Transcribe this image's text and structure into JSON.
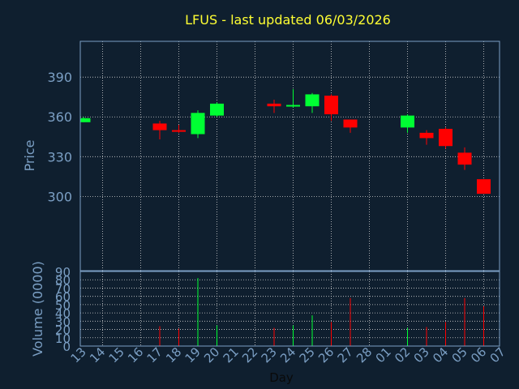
{
  "chart_data": {
    "type": "candlestick",
    "title": "LFUS - last updated 06/03/2026",
    "xlabel": "Day",
    "price_panel": {
      "ylabel": "Price",
      "ylim": [
        244,
        417
      ],
      "yticks": [
        300,
        330,
        360,
        390
      ]
    },
    "volume_panel": {
      "ylabel": "Volume (0000)",
      "ylim": [
        0,
        90
      ],
      "yticks": [
        0,
        10,
        20,
        30,
        40,
        50,
        60,
        70,
        80,
        90
      ]
    },
    "x_tick_labels": [
      "13",
      "14",
      "15",
      "16",
      "17",
      "18",
      "19",
      "20",
      "21",
      "22",
      "23",
      "24",
      "25",
      "26",
      "27",
      "28",
      "01",
      "02",
      "03",
      "04",
      "05",
      "06",
      "07"
    ],
    "candles": [
      {
        "i": 0,
        "open": 356,
        "high": 360,
        "low": 356,
        "close": 359,
        "volume": 0
      },
      {
        "i": 4,
        "open": 355,
        "high": 357,
        "low": 343,
        "close": 350,
        "volume": 24
      },
      {
        "i": 5,
        "open": 350,
        "high": 354,
        "low": 348,
        "close": 349,
        "volume": 21
      },
      {
        "i": 6,
        "open": 347,
        "high": 365,
        "low": 344,
        "close": 363,
        "volume": 82
      },
      {
        "i": 7,
        "open": 361,
        "high": 371,
        "low": 360,
        "close": 370,
        "volume": 25
      },
      {
        "i": 10,
        "open": 370,
        "high": 373,
        "low": 363,
        "close": 368,
        "volume": 22
      },
      {
        "i": 11,
        "open": 368,
        "high": 381,
        "low": 367,
        "close": 369,
        "volume": 25
      },
      {
        "i": 12,
        "open": 368,
        "high": 378,
        "low": 363,
        "close": 377,
        "volume": 37
      },
      {
        "i": 13,
        "open": 376,
        "high": 377,
        "low": 357,
        "close": 362,
        "volume": 29
      },
      {
        "i": 14,
        "open": 358,
        "high": 358,
        "low": 348,
        "close": 352,
        "volume": 58
      },
      {
        "i": 17,
        "open": 352,
        "high": 362,
        "low": 348,
        "close": 361,
        "volume": 22
      },
      {
        "i": 18,
        "open": 348,
        "high": 350,
        "low": 339,
        "close": 344,
        "volume": 23
      },
      {
        "i": 19,
        "open": 351,
        "high": 352,
        "low": 336,
        "close": 338,
        "volume": 29
      },
      {
        "i": 20,
        "open": 333,
        "high": 337,
        "low": 320,
        "close": 324,
        "volume": 58
      },
      {
        "i": 21,
        "open": 313,
        "high": 313,
        "low": 302,
        "close": 302,
        "volume": 48
      }
    ],
    "colors": {
      "up": "#00ff33",
      "down": "#ff0000",
      "background": "#0f1f2f",
      "plot_border": "#7b9fc4",
      "grid": "#d0d0d0",
      "axis_text": "#7b9fc4",
      "title": "#ffff33"
    },
    "grid": true
  }
}
